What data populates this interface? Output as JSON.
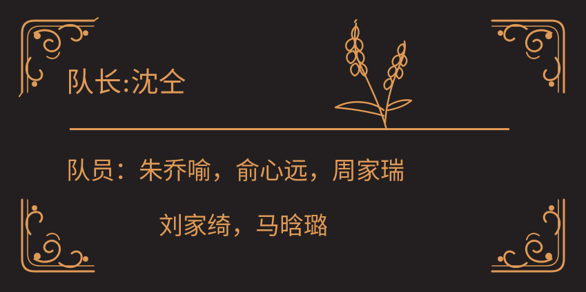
{
  "card": {
    "leader_line": "队长:沈仝",
    "members_line_1": "队员：朱乔喻，俞心远，周家瑞",
    "members_line_2": "刘家绮，马晗璐"
  },
  "colors": {
    "background": "#231f20",
    "accent": "#e09a56"
  },
  "icons": {
    "ornament": "ornate-corner-flourish-icon",
    "emblem": "wheat-ear-icon"
  }
}
